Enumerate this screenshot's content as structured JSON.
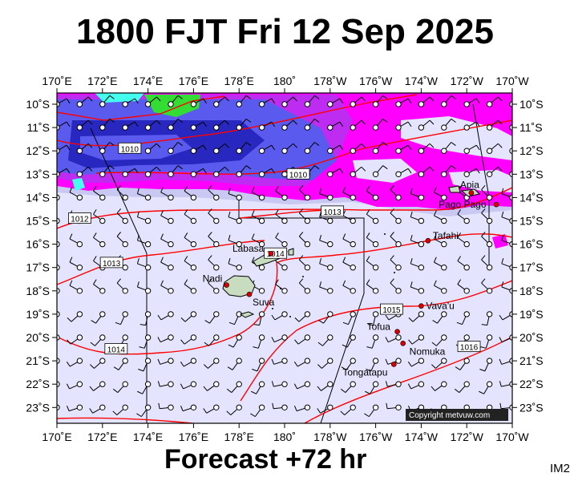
{
  "title": "1800 FJT Fri 12 Sep 2025",
  "footer": "Forecast +72 hr",
  "corner_label": "IM2",
  "copyright": "Copyright metvuw.com",
  "lon_labels": [
    "170˚E",
    "172˚E",
    "174˚E",
    "176˚E",
    "178˚E",
    "180˚",
    "178˚W",
    "176˚W",
    "174˚W",
    "172˚W",
    "170˚W"
  ],
  "lat_labels": [
    "10˚S",
    "11˚S",
    "12˚S",
    "13˚S",
    "14˚S",
    "15˚S",
    "16˚S",
    "17˚S",
    "18˚S",
    "19˚S",
    "20˚S",
    "21˚S",
    "22˚S",
    "23˚S"
  ],
  "places": [
    {
      "name": "Apia",
      "lon": -171.8,
      "lat": -13.8
    },
    {
      "name": "Pago Pago",
      "lon": -170.7,
      "lat": -14.3
    },
    {
      "name": "Tafahi",
      "lon": -173.7,
      "lat": -15.85
    },
    {
      "name": "Labasa",
      "lon": 179.4,
      "lat": -16.4
    },
    {
      "name": "Nadi",
      "lon": 177.45,
      "lat": -17.75
    },
    {
      "name": "Suva",
      "lon": 178.45,
      "lat": -18.15
    },
    {
      "name": "Vava'u",
      "lon": -174.0,
      "lat": -18.65
    },
    {
      "name": "Tofua",
      "lon": -175.05,
      "lat": -19.75
    },
    {
      "name": "Nomuka",
      "lon": -174.8,
      "lat": -20.25
    },
    {
      "name": "Tongatapu",
      "lon": -175.2,
      "lat": -21.15
    }
  ],
  "isobars": [
    {
      "label": "1010",
      "lon": 173.2,
      "lat": -11.9
    },
    {
      "label": "1010",
      "lon": -179.4,
      "lat": -13.0
    },
    {
      "label": "1012",
      "lon": 171.0,
      "lat": -14.9
    },
    {
      "label": "1013",
      "lon": 172.4,
      "lat": -16.8
    },
    {
      "label": "1013",
      "lon": -177.9,
      "lat": -14.6
    },
    {
      "label": "1014",
      "lon": 179.6,
      "lat": -16.4
    },
    {
      "label": "1014",
      "lon": 172.6,
      "lat": -20.5
    },
    {
      "label": "1015",
      "lon": -175.3,
      "lat": -18.8
    },
    {
      "label": "1016",
      "lon": -171.9,
      "lat": -20.4
    }
  ],
  "colors": {
    "sea_background": "#e4e4ff",
    "rain_light": "#c8c8f2",
    "rain_medium": "#a6a6ef",
    "rain_blue": "#5a5aef",
    "rain_heavy": "#2828c0",
    "rain_magenta": "#ff00ff",
    "rain_violet": "#bd2cf0",
    "rain_green": "#33dd33",
    "rain_cyan": "#44ffee",
    "isobar": "#ff0000",
    "land": "#c8dcc0",
    "city_dot": "#dd0000"
  },
  "wind_barbs": "grid of wind barbs over the map"
}
